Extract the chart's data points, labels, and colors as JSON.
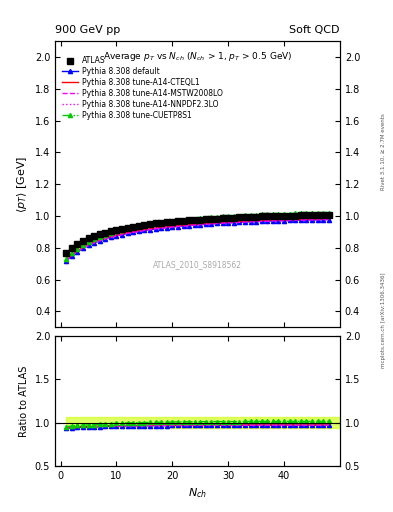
{
  "title_top_left": "900 GeV pp",
  "title_top_right": "Soft QCD",
  "main_title": "Average $p_T$ vs $N_{ch}$ ($N_{ch}$ > 1, $p_T$ > 0.5 GeV)",
  "watermark": "ATLAS_2010_S8918562",
  "right_label_top": "Rivet 3.1.10, ≥ 2.7M events",
  "right_label_bottom": "mcplots.cern.ch [arXiv:1306.3436]",
  "xlabel": "$N_{ch}$",
  "ylabel_main": "$\\langle p_T \\rangle$ [GeV]",
  "ylabel_ratio": "Ratio to ATLAS",
  "ylim_main": [
    0.3,
    2.1
  ],
  "ylim_ratio": [
    0.5,
    2.0
  ],
  "xlim": [
    -1,
    50
  ],
  "yticks_main": [
    0.4,
    0.6,
    0.8,
    1.0,
    1.2,
    1.4,
    1.6,
    1.8,
    2.0
  ],
  "yticks_ratio": [
    0.5,
    1.0,
    1.5,
    2.0
  ],
  "xticks": [
    0,
    10,
    20,
    30,
    40
  ],
  "series": {
    "ATLAS": {
      "x": [
        1,
        2,
        3,
        4,
        5,
        6,
        7,
        8,
        9,
        10,
        11,
        12,
        13,
        14,
        15,
        16,
        17,
        18,
        19,
        20,
        21,
        22,
        23,
        24,
        25,
        26,
        27,
        28,
        29,
        30,
        31,
        32,
        33,
        34,
        35,
        36,
        37,
        38,
        39,
        40,
        41,
        42,
        43,
        44,
        45,
        46,
        47,
        48
      ],
      "y": [
        0.767,
        0.8,
        0.822,
        0.843,
        0.86,
        0.874,
        0.886,
        0.896,
        0.905,
        0.913,
        0.92,
        0.927,
        0.933,
        0.939,
        0.944,
        0.949,
        0.953,
        0.957,
        0.961,
        0.964,
        0.967,
        0.97,
        0.973,
        0.975,
        0.978,
        0.98,
        0.982,
        0.984,
        0.986,
        0.988,
        0.99,
        0.992,
        0.993,
        0.995,
        0.996,
        0.997,
        0.998,
        0.999,
        1.0,
        1.001,
        1.002,
        1.003,
        1.004,
        1.005,
        1.006,
        1.007,
        1.007,
        1.008
      ],
      "color": "black",
      "marker": "s",
      "markersize": 4,
      "linestyle": "none"
    },
    "default": {
      "x": [
        1,
        2,
        3,
        4,
        5,
        6,
        7,
        8,
        9,
        10,
        11,
        12,
        13,
        14,
        15,
        16,
        17,
        18,
        19,
        20,
        21,
        22,
        23,
        24,
        25,
        26,
        27,
        28,
        29,
        30,
        31,
        32,
        33,
        34,
        35,
        36,
        37,
        38,
        39,
        40,
        41,
        42,
        43,
        44,
        45,
        46,
        47,
        48
      ],
      "y": [
        0.715,
        0.75,
        0.775,
        0.797,
        0.815,
        0.831,
        0.844,
        0.856,
        0.866,
        0.875,
        0.883,
        0.891,
        0.897,
        0.903,
        0.909,
        0.914,
        0.919,
        0.923,
        0.927,
        0.931,
        0.934,
        0.937,
        0.94,
        0.943,
        0.946,
        0.948,
        0.95,
        0.953,
        0.955,
        0.957,
        0.959,
        0.96,
        0.962,
        0.964,
        0.965,
        0.967,
        0.968,
        0.969,
        0.97,
        0.971,
        0.972,
        0.973,
        0.974,
        0.975,
        0.975,
        0.976,
        0.977,
        0.978
      ],
      "color": "#0000FF",
      "marker": "^",
      "markersize": 3,
      "linestyle": "-",
      "label": "Pythia 8.308 default"
    },
    "CTEQL1": {
      "x": [
        1,
        2,
        3,
        4,
        5,
        6,
        7,
        8,
        9,
        10,
        11,
        12,
        13,
        14,
        15,
        16,
        17,
        18,
        19,
        20,
        21,
        22,
        23,
        24,
        25,
        26,
        27,
        28,
        29,
        30,
        31,
        32,
        33,
        34,
        35,
        36,
        37,
        38,
        39,
        40,
        41,
        42,
        43,
        44,
        45,
        46,
        47,
        48
      ],
      "y": [
        0.72,
        0.755,
        0.78,
        0.801,
        0.82,
        0.836,
        0.849,
        0.861,
        0.871,
        0.88,
        0.888,
        0.896,
        0.902,
        0.908,
        0.914,
        0.919,
        0.924,
        0.928,
        0.932,
        0.936,
        0.939,
        0.942,
        0.945,
        0.948,
        0.951,
        0.953,
        0.955,
        0.958,
        0.96,
        0.962,
        0.964,
        0.965,
        0.967,
        0.969,
        0.97,
        0.972,
        0.973,
        0.974,
        0.975,
        0.976,
        0.977,
        0.978,
        0.979,
        0.98,
        0.98,
        0.981,
        0.982,
        0.983
      ],
      "color": "#FF0000",
      "linestyle": "-",
      "label": "Pythia 8.308 tune-A14-CTEQL1"
    },
    "MSTW2008LO": {
      "x": [
        1,
        2,
        3,
        4,
        5,
        6,
        7,
        8,
        9,
        10,
        11,
        12,
        13,
        14,
        15,
        16,
        17,
        18,
        19,
        20,
        21,
        22,
        23,
        24,
        25,
        26,
        27,
        28,
        29,
        30,
        31,
        32,
        33,
        34,
        35,
        36,
        37,
        38,
        39,
        40,
        41,
        42,
        43,
        44,
        45,
        46,
        47,
        48
      ],
      "y": [
        0.715,
        0.75,
        0.775,
        0.797,
        0.815,
        0.83,
        0.844,
        0.855,
        0.866,
        0.875,
        0.883,
        0.891,
        0.897,
        0.903,
        0.909,
        0.914,
        0.919,
        0.923,
        0.927,
        0.931,
        0.934,
        0.937,
        0.94,
        0.943,
        0.946,
        0.948,
        0.951,
        0.953,
        0.955,
        0.957,
        0.959,
        0.961,
        0.962,
        0.964,
        0.965,
        0.967,
        0.968,
        0.969,
        0.97,
        0.971,
        0.972,
        0.973,
        0.974,
        0.975,
        0.976,
        0.976,
        0.977,
        0.978
      ],
      "color": "#FF00FF",
      "linestyle": "--",
      "label": "Pythia 8.308 tune-A14-MSTW2008LO"
    },
    "NNPDF2.3LO": {
      "x": [
        1,
        2,
        3,
        4,
        5,
        6,
        7,
        8,
        9,
        10,
        11,
        12,
        13,
        14,
        15,
        16,
        17,
        18,
        19,
        20,
        21,
        22,
        23,
        24,
        25,
        26,
        27,
        28,
        29,
        30,
        31,
        32,
        33,
        34,
        35,
        36,
        37,
        38,
        39,
        40,
        41,
        42,
        43,
        44,
        45,
        46,
        47,
        48
      ],
      "y": [
        0.717,
        0.752,
        0.777,
        0.799,
        0.817,
        0.833,
        0.846,
        0.857,
        0.867,
        0.877,
        0.885,
        0.892,
        0.899,
        0.905,
        0.911,
        0.916,
        0.92,
        0.924,
        0.929,
        0.932,
        0.935,
        0.938,
        0.941,
        0.944,
        0.947,
        0.949,
        0.951,
        0.954,
        0.956,
        0.958,
        0.96,
        0.961,
        0.963,
        0.965,
        0.966,
        0.968,
        0.969,
        0.97,
        0.971,
        0.972,
        0.973,
        0.974,
        0.975,
        0.976,
        0.977,
        0.977,
        0.978,
        0.979
      ],
      "color": "#FF00FF",
      "linestyle": ":",
      "label": "Pythia 8.308 tune-A14-NNPDF2.3LO"
    },
    "CUETP8S1": {
      "x": [
        1,
        2,
        3,
        4,
        5,
        6,
        7,
        8,
        9,
        10,
        11,
        12,
        13,
        14,
        15,
        16,
        17,
        18,
        19,
        20,
        21,
        22,
        23,
        24,
        25,
        26,
        27,
        28,
        29,
        30,
        31,
        32,
        33,
        34,
        35,
        36,
        37,
        38,
        39,
        40,
        41,
        42,
        43,
        44,
        45,
        46,
        47,
        48
      ],
      "y": [
        0.73,
        0.768,
        0.795,
        0.817,
        0.837,
        0.854,
        0.869,
        0.882,
        0.894,
        0.904,
        0.913,
        0.922,
        0.93,
        0.937,
        0.944,
        0.95,
        0.956,
        0.961,
        0.966,
        0.97,
        0.974,
        0.977,
        0.981,
        0.984,
        0.987,
        0.99,
        0.993,
        0.995,
        0.997,
        0.999,
        1.001,
        1.003,
        1.005,
        1.007,
        1.008,
        1.01,
        1.011,
        1.012,
        1.013,
        1.014,
        1.015,
        1.016,
        1.017,
        1.018,
        1.019,
        1.02,
        1.021,
        1.022
      ],
      "color": "#00CC00",
      "marker": "^",
      "markersize": 3,
      "linestyle": "-.",
      "label": "Pythia 8.308 tune-CUETP8S1"
    }
  },
  "ratio_band_color": "#CCFF00",
  "ratio_band_alpha": 0.6,
  "ratio_band_upper": 1.06,
  "ratio_band_lower": 0.94
}
